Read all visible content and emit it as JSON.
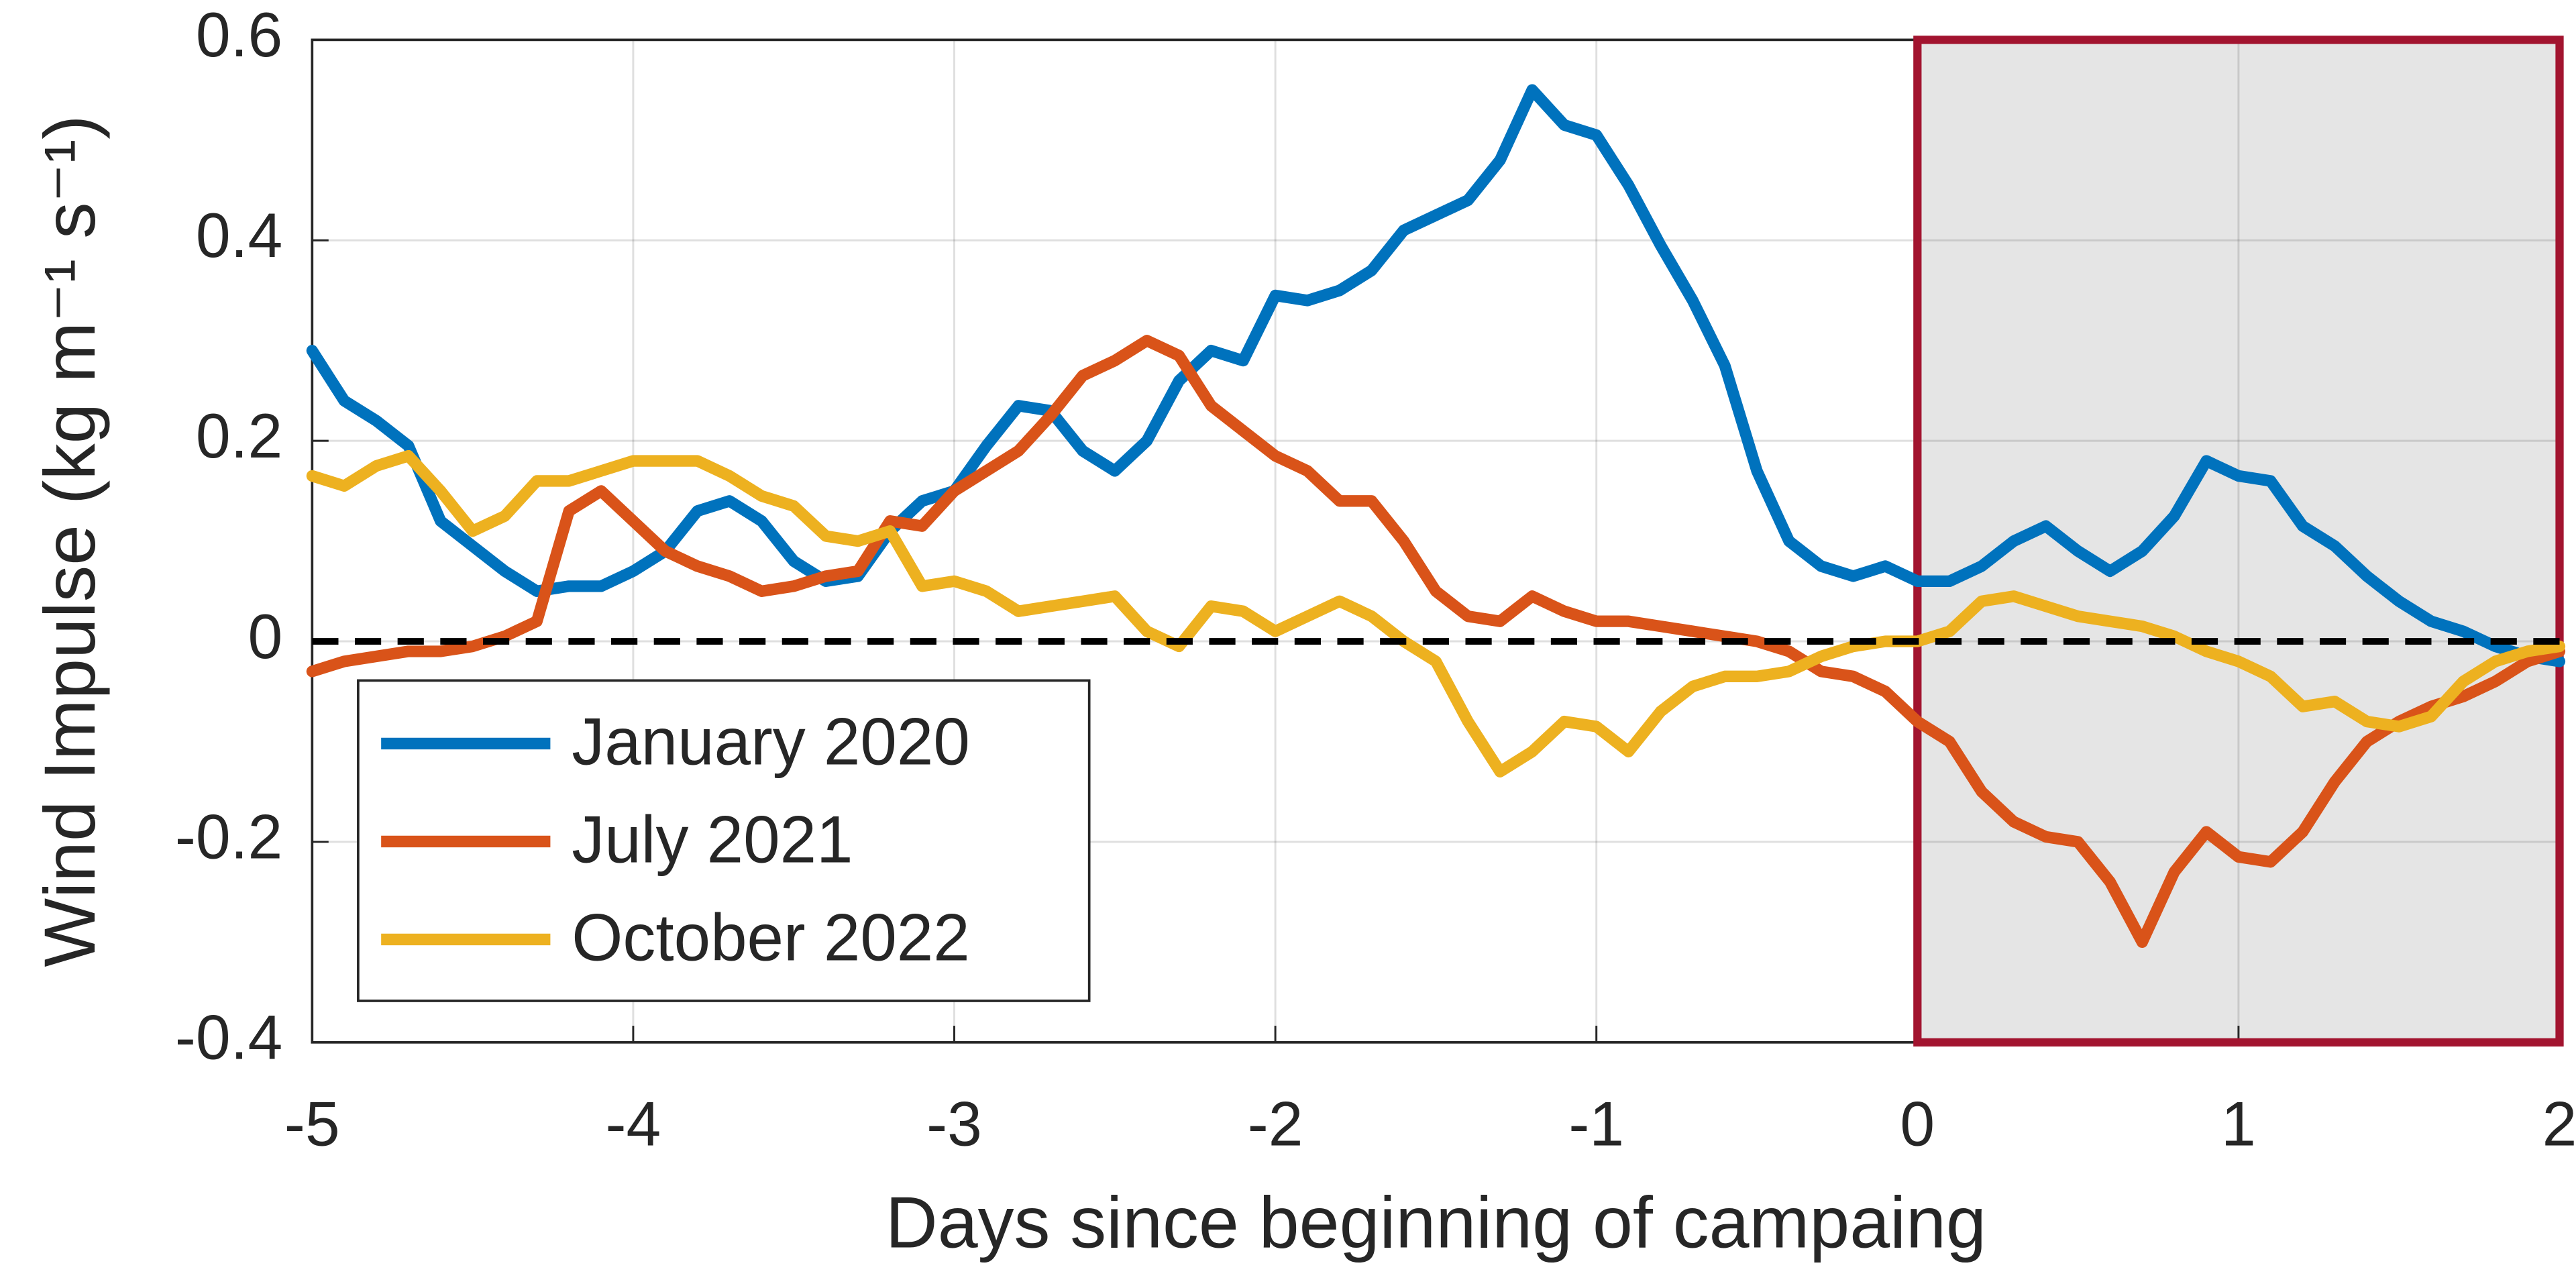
{
  "chart_data": {
    "type": "line",
    "xlabel": "Days since beginning of campaing",
    "ylabel": "Wind Impulse (kg m⁻¹ s⁻¹)",
    "x": [
      -5,
      -4.9,
      -4.8,
      -4.7,
      -4.6,
      -4.5,
      -4.4,
      -4.3,
      -4.2,
      -4.1,
      -4,
      -3.9,
      -3.8,
      -3.7,
      -3.6,
      -3.5,
      -3.4,
      -3.3,
      -3.2,
      -3.1,
      -3,
      -2.9,
      -2.8,
      -2.7,
      -2.6,
      -2.5,
      -2.4,
      -2.3,
      -2.2,
      -2.1,
      -2,
      -1.9,
      -1.8,
      -1.7,
      -1.6,
      -1.5,
      -1.4,
      -1.3,
      -1.2,
      -1.1,
      -1,
      -0.9,
      -0.8,
      -0.7,
      -0.6,
      -0.5,
      -0.4,
      -0.3,
      -0.2,
      -0.1,
      0,
      0.1,
      0.2,
      0.3,
      0.4,
      0.5,
      0.6,
      0.7,
      0.8,
      0.9,
      1,
      1.1,
      1.2,
      1.3,
      1.4,
      1.5,
      1.6,
      1.7,
      1.8,
      1.9,
      2
    ],
    "series": [
      {
        "name": "January 2020",
        "color": "#0072bd",
        "values": [
          0.29,
          0.24,
          0.22,
          0.195,
          0.12,
          0.095,
          0.07,
          0.05,
          0.055,
          0.055,
          0.07,
          0.09,
          0.13,
          0.14,
          0.12,
          0.08,
          0.06,
          0.065,
          0.11,
          0.14,
          0.15,
          0.195,
          0.235,
          0.23,
          0.19,
          0.17,
          0.2,
          0.26,
          0.29,
          0.28,
          0.345,
          0.34,
          0.35,
          0.37,
          0.41,
          0.425,
          0.44,
          0.48,
          0.55,
          0.515,
          0.505,
          0.455,
          0.395,
          0.34,
          0.275,
          0.17,
          0.1,
          0.075,
          0.065,
          0.075,
          0.06,
          0.06,
          0.075,
          0.1,
          0.115,
          0.09,
          0.07,
          0.09,
          0.125,
          0.18,
          0.165,
          0.16,
          0.115,
          0.095,
          0.065,
          0.04,
          0.02,
          0.01,
          -0.005,
          -0.015,
          -0.02
        ]
      },
      {
        "name": "July 2021",
        "color": "#d95319",
        "values": [
          -0.03,
          -0.02,
          -0.015,
          -0.01,
          -0.01,
          -0.005,
          0.005,
          0.02,
          0.13,
          0.15,
          0.12,
          0.09,
          0.075,
          0.065,
          0.05,
          0.055,
          0.065,
          0.07,
          0.12,
          0.115,
          0.15,
          0.17,
          0.19,
          0.225,
          0.265,
          0.28,
          0.3,
          0.285,
          0.235,
          0.21,
          0.185,
          0.17,
          0.14,
          0.14,
          0.1,
          0.05,
          0.025,
          0.02,
          0.045,
          0.03,
          0.02,
          0.02,
          0.015,
          0.01,
          0.005,
          0,
          -0.01,
          -0.03,
          -0.035,
          -0.05,
          -0.08,
          -0.1,
          -0.15,
          -0.18,
          -0.195,
          -0.2,
          -0.24,
          -0.3,
          -0.23,
          -0.19,
          -0.215,
          -0.22,
          -0.19,
          -0.14,
          -0.1,
          -0.08,
          -0.065,
          -0.055,
          -0.04,
          -0.02,
          -0.01
        ]
      },
      {
        "name": "October 2022",
        "color": "#edb120",
        "values": [
          0.165,
          0.155,
          0.175,
          0.185,
          0.15,
          0.11,
          0.125,
          0.16,
          0.16,
          0.17,
          0.18,
          0.18,
          0.18,
          0.165,
          0.145,
          0.135,
          0.105,
          0.1,
          0.11,
          0.055,
          0.06,
          0.05,
          0.03,
          0.035,
          0.04,
          0.045,
          0.01,
          -0.005,
          0.035,
          0.03,
          0.01,
          0.025,
          0.04,
          0.025,
          0,
          -0.02,
          -0.08,
          -0.13,
          -0.11,
          -0.08,
          -0.085,
          -0.11,
          -0.07,
          -0.045,
          -0.035,
          -0.035,
          -0.03,
          -0.015,
          -0.005,
          0,
          0,
          0.01,
          0.04,
          0.045,
          0.035,
          0.025,
          0.02,
          0.015,
          0.005,
          -0.01,
          -0.02,
          -0.035,
          -0.065,
          -0.06,
          -0.08,
          -0.085,
          -0.075,
          -0.04,
          -0.02,
          -0.01,
          -0.005
        ]
      }
    ],
    "xlim": [
      -5,
      2
    ],
    "ylim": [
      -0.4,
      0.6
    ],
    "xticks": [
      -5,
      -4,
      -3,
      -2,
      -1,
      0,
      1,
      2
    ],
    "yticks": [
      -0.4,
      -0.2,
      0,
      0.2,
      0.4,
      0.6
    ],
    "grid": true,
    "legend": "lower left",
    "hline": 0,
    "highlight": {
      "x": [
        0,
        2
      ],
      "color": "#e5e5e5",
      "edgecolor": "#a2142f"
    }
  }
}
